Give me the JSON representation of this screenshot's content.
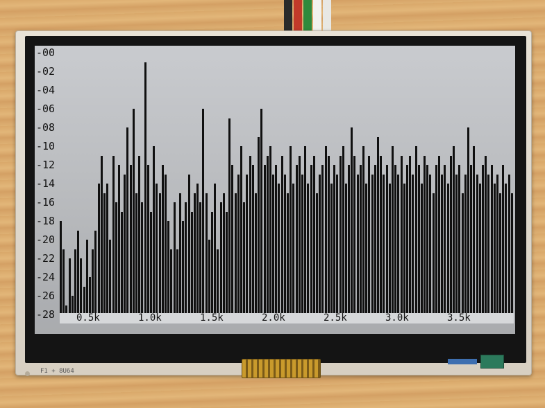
{
  "display": {
    "y_ticks": [
      "-00",
      "-02",
      "-04",
      "-06",
      "-08",
      "-10",
      "-12",
      "-14",
      "-16",
      "-18",
      "-20",
      "-22",
      "-24",
      "-26",
      "-28"
    ],
    "x_ticks": [
      "0.5k",
      "1.0k",
      "1.5k",
      "2.0k",
      "2.5k",
      "3.0k",
      "3.5k"
    ]
  },
  "board": {
    "silkscreen": "F1 + 8U64"
  },
  "colors": {
    "lcd_bg": "#c0c2c5",
    "bar": "#101010",
    "bezel": "#141414"
  },
  "spectrum": [
    -18,
    -21,
    -27,
    -22,
    -26,
    -21,
    -19,
    -22,
    -25,
    -20,
    -24,
    -21,
    -19,
    -14,
    -11,
    -15,
    -14,
    -20,
    -11,
    -16,
    -12,
    -17,
    -13,
    -8,
    -12,
    -6,
    -15,
    -11,
    -16,
    -1,
    -12,
    -17,
    -10,
    -14,
    -15,
    -12,
    -13,
    -18,
    -21,
    -16,
    -21,
    -15,
    -18,
    -16,
    -13,
    -17,
    -15,
    -14,
    -16,
    -6,
    -15,
    -20,
    -17,
    -14,
    -21,
    -16,
    -15,
    -17,
    -7,
    -12,
    -15,
    -13,
    -10,
    -16,
    -13,
    -11,
    -12,
    -15,
    -9,
    -6,
    -12,
    -11,
    -10,
    -13,
    -12,
    -14,
    -11,
    -13,
    -15,
    -10,
    -14,
    -12,
    -11,
    -13,
    -10,
    -14,
    -12,
    -11,
    -15,
    -13,
    -12,
    -10,
    -11,
    -14,
    -12,
    -13,
    -11,
    -10,
    -14,
    -12,
    -8,
    -11,
    -13,
    -12,
    -10,
    -14,
    -11,
    -13,
    -12,
    -9,
    -11,
    -13,
    -12,
    -14,
    -10,
    -12,
    -13,
    -11,
    -14,
    -12,
    -11,
    -13,
    -10,
    -12,
    -14,
    -11,
    -12,
    -13,
    -15,
    -12,
    -11,
    -13,
    -12,
    -14,
    -11,
    -10,
    -13,
    -12,
    -15,
    -13,
    -8,
    -12,
    -10,
    -13,
    -14,
    -12,
    -11,
    -13,
    -12,
    -14,
    -13,
    -15,
    -12,
    -14,
    -13,
    -15
  ]
}
